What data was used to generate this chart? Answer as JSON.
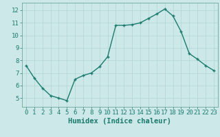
{
  "x": [
    0,
    1,
    2,
    3,
    4,
    5,
    6,
    7,
    8,
    9,
    10,
    11,
    12,
    13,
    14,
    15,
    16,
    17,
    18,
    19,
    20,
    21,
    22,
    23
  ],
  "y": [
    7.6,
    6.6,
    5.8,
    5.2,
    5.0,
    4.8,
    6.5,
    6.8,
    7.0,
    7.5,
    8.3,
    10.8,
    10.8,
    10.85,
    11.0,
    11.35,
    11.7,
    12.1,
    11.55,
    10.3,
    8.55,
    8.1,
    7.6,
    7.2
  ],
  "line_color": "#1a7a6e",
  "marker": "+",
  "marker_size": 3,
  "marker_linewidth": 1.0,
  "line_width": 1.0,
  "background_color": "#cce8e8",
  "grid_color": "#b0d4d4",
  "xlabel": "Humidex (Indice chaleur)",
  "xlabel_fontsize": 7.5,
  "tick_fontsize": 6.5,
  "xlim": [
    -0.5,
    23.5
  ],
  "ylim": [
    4.3,
    12.6
  ],
  "yticks": [
    5,
    6,
    7,
    8,
    9,
    10,
    11,
    12
  ],
  "xticks": [
    0,
    1,
    2,
    3,
    4,
    5,
    6,
    7,
    8,
    9,
    10,
    11,
    12,
    13,
    14,
    15,
    16,
    17,
    18,
    19,
    20,
    21,
    22,
    23
  ],
  "spine_color": "#5a9a8a",
  "tick_color": "#1a7a6e"
}
